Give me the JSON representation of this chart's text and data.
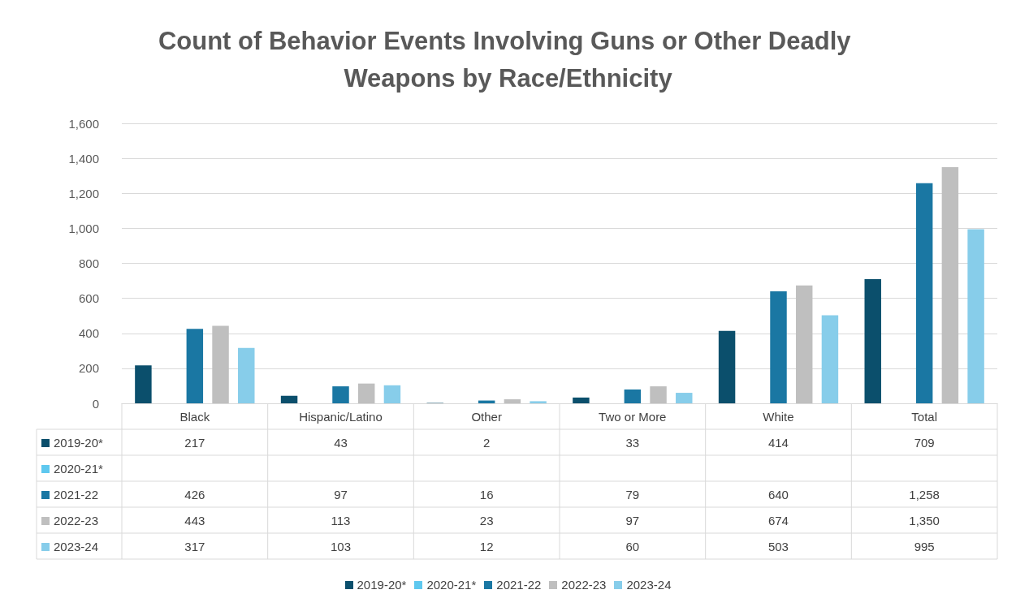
{
  "chart_data": {
    "type": "bar",
    "title": "Count of Behavior Events Involving Guns or Other Deadly Weapons by Race/Ethnicity",
    "categories": [
      "Black",
      "Hispanic/Latino",
      "Other",
      "Two or More",
      "White",
      "Total"
    ],
    "series": [
      {
        "name": "2019-20*",
        "color": "#0b4f6c",
        "values": [
          217,
          43,
          2,
          33,
          414,
          709
        ],
        "value_labels": [
          "217",
          "43",
          "2",
          "33",
          "414",
          "709"
        ]
      },
      {
        "name": "2020-21*",
        "color": "#5ec8ef",
        "values": [
          null,
          null,
          null,
          null,
          null,
          null
        ],
        "value_labels": [
          null,
          null,
          null,
          null,
          null,
          null
        ]
      },
      {
        "name": "2021-22",
        "color": "#1a77a3",
        "values": [
          426,
          97,
          16,
          79,
          640,
          1258
        ],
        "value_labels": [
          "426",
          "97",
          "16",
          "79",
          "640",
          "1,258"
        ]
      },
      {
        "name": "2022-23",
        "color": "#bfbfbf",
        "values": [
          443,
          113,
          23,
          97,
          674,
          1350
        ],
        "value_labels": [
          "443",
          "113",
          "23",
          "97",
          "674",
          "1,350"
        ]
      },
      {
        "name": "2023-24",
        "color": "#87cdea",
        "values": [
          317,
          103,
          12,
          60,
          503,
          995
        ],
        "value_labels": [
          "317",
          "103",
          "12",
          "60",
          "503",
          "995"
        ]
      }
    ],
    "ylim": [
      0,
      1600
    ],
    "yticks": [
      0,
      200,
      400,
      600,
      800,
      {
        "value": 1000,
        "label": "1,000"
      },
      {
        "value": 1200,
        "label": "1,200"
      },
      {
        "value": 1400,
        "label": "1,400"
      },
      {
        "value": 1600,
        "label": "1,600"
      }
    ],
    "grid": "y",
    "legend": "bottom"
  }
}
